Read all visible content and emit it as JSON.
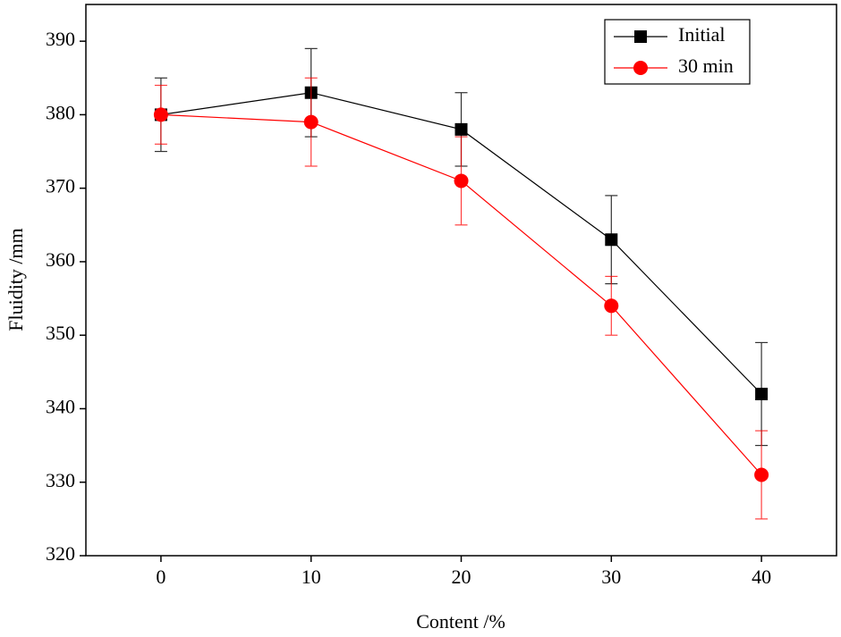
{
  "chart_data": {
    "type": "line",
    "x_label": "Content /%",
    "y_label": "Fluidity /mm",
    "x": [
      0,
      10,
      20,
      30,
      40
    ],
    "series": [
      {
        "name": "Initial",
        "color": "#000000",
        "marker": "square",
        "values": [
          380,
          383,
          378,
          363,
          342
        ],
        "errors": [
          5,
          6,
          5,
          6,
          7
        ]
      },
      {
        "name": "30 min",
        "color": "#ff0000",
        "marker": "circle",
        "values": [
          380,
          379,
          371,
          354,
          331
        ],
        "errors": [
          4,
          6,
          6,
          4,
          6
        ]
      }
    ],
    "xlim": [
      -5,
      45
    ],
    "xticks": [
      0,
      10,
      20,
      30,
      40
    ],
    "ylim": [
      320,
      395
    ],
    "yticks": [
      320,
      330,
      340,
      350,
      360,
      370,
      380,
      390
    ],
    "legend": "upper-right"
  }
}
